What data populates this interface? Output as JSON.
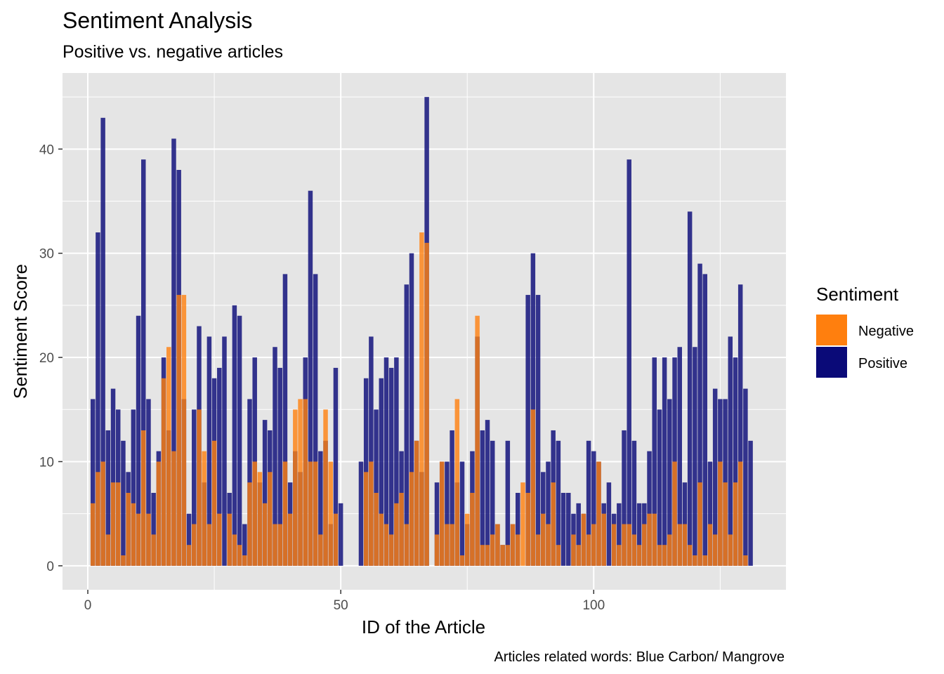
{
  "chart_data": {
    "type": "bar",
    "title": "Sentiment Analysis",
    "subtitle": "Positive vs. negative articles",
    "xlabel": "ID of the Article",
    "ylabel": "Sentiment Score",
    "caption": "Articles related words: Blue Carbon/ Mangrove",
    "xlim": [
      -5,
      138
    ],
    "ylim": [
      -2.3,
      47.3
    ],
    "x_ticks": [
      0,
      50,
      100
    ],
    "y_ticks": [
      0,
      10,
      20,
      30,
      40
    ],
    "grid": true,
    "legend": {
      "title": "Sentiment",
      "position": "right",
      "entries": [
        {
          "name": "Negative",
          "color": "#ff7f0e"
        },
        {
          "name": "Positive",
          "color": "#0a0a78"
        }
      ]
    },
    "colors": {
      "panel": "#e5e5e5",
      "grid": "#ffffff",
      "positive": "#0a0a78",
      "negative": "#ff7f0e"
    },
    "series": [
      {
        "name": "Positive",
        "x": [
          1,
          2,
          3,
          4,
          5,
          6,
          7,
          8,
          9,
          10,
          11,
          12,
          13,
          14,
          15,
          16,
          17,
          18,
          19,
          20,
          21,
          22,
          23,
          24,
          25,
          26,
          27,
          28,
          29,
          30,
          31,
          32,
          33,
          34,
          35,
          36,
          37,
          38,
          39,
          40,
          41,
          42,
          43,
          44,
          45,
          46,
          47,
          48,
          49,
          50,
          51,
          52,
          53,
          54,
          55,
          56,
          57,
          58,
          59,
          60,
          61,
          62,
          63,
          64,
          65,
          66,
          67,
          68,
          69,
          70,
          71,
          72,
          73,
          74,
          75,
          76,
          77,
          78,
          79,
          80,
          81,
          82,
          83,
          84,
          85,
          86,
          87,
          88,
          89,
          90,
          91,
          92,
          93,
          94,
          95,
          96,
          97,
          98,
          99,
          100,
          101,
          102,
          103,
          104,
          105,
          106,
          107,
          108,
          109,
          110,
          111,
          112,
          113,
          114,
          115,
          116,
          117,
          118,
          119,
          120,
          121,
          122,
          123,
          124,
          125,
          126,
          127,
          128,
          129,
          130,
          131
        ],
        "values": [
          16,
          32,
          43,
          13,
          17,
          15,
          12,
          9,
          15,
          24,
          39,
          16,
          7,
          11,
          20,
          13,
          41,
          38,
          16,
          5,
          15,
          23,
          8,
          22,
          18,
          19,
          22,
          7,
          25,
          24,
          4,
          16,
          20,
          8,
          14,
          13,
          21,
          19,
          28,
          8,
          11,
          9,
          20,
          36,
          28,
          11,
          12,
          4,
          19,
          6,
          0,
          0,
          0,
          10,
          18,
          22,
          15,
          18,
          20,
          19,
          20,
          11,
          27,
          30,
          12,
          9,
          45,
          0,
          8,
          10,
          10,
          13,
          8,
          10,
          4,
          11,
          22,
          13,
          14,
          12,
          4,
          2,
          12,
          4,
          7,
          0,
          26,
          30,
          26,
          9,
          10,
          13,
          12,
          7,
          7,
          5,
          6,
          5,
          12,
          11,
          10,
          6,
          8,
          5,
          6,
          13,
          39,
          12,
          6,
          6,
          11,
          20,
          15,
          20,
          16,
          20,
          21,
          8,
          34,
          21,
          29,
          28,
          10,
          17,
          16,
          16,
          22,
          20,
          27,
          17,
          12
        ]
      },
      {
        "name": "Negative",
        "x": [
          1,
          2,
          3,
          4,
          5,
          6,
          7,
          8,
          9,
          10,
          11,
          12,
          13,
          14,
          15,
          16,
          17,
          18,
          19,
          20,
          21,
          22,
          23,
          24,
          25,
          26,
          27,
          28,
          29,
          30,
          31,
          32,
          33,
          34,
          35,
          36,
          37,
          38,
          39,
          40,
          41,
          42,
          43,
          44,
          45,
          46,
          47,
          48,
          49,
          50,
          51,
          52,
          53,
          54,
          55,
          56,
          57,
          58,
          59,
          60,
          61,
          62,
          63,
          64,
          65,
          66,
          67,
          68,
          69,
          70,
          71,
          72,
          73,
          74,
          75,
          76,
          77,
          78,
          79,
          80,
          81,
          82,
          83,
          84,
          85,
          86,
          87,
          88,
          89,
          90,
          91,
          92,
          93,
          94,
          95,
          96,
          97,
          98,
          99,
          100,
          101,
          102,
          103,
          104,
          105,
          106,
          107,
          108,
          109,
          110,
          111,
          112,
          113,
          114,
          115,
          116,
          117,
          118,
          119,
          120,
          121,
          122,
          123,
          124,
          125,
          126,
          127,
          128,
          129,
          130,
          131
        ],
        "values": [
          6,
          9,
          10,
          3,
          8,
          8,
          1,
          7,
          6,
          5,
          13,
          5,
          3,
          10,
          18,
          21,
          11,
          26,
          26,
          2,
          4,
          15,
          11,
          4,
          12,
          5,
          0,
          5,
          3,
          2,
          1,
          8,
          10,
          9,
          6,
          9,
          4,
          4,
          10,
          5,
          15,
          16,
          16,
          10,
          10,
          3,
          15,
          10,
          5,
          0,
          0,
          0,
          0,
          0,
          9,
          10,
          7,
          5,
          4,
          3,
          6,
          7,
          4,
          9,
          12,
          32,
          31,
          0,
          3,
          10,
          4,
          4,
          16,
          1,
          5,
          7,
          24,
          2,
          2,
          3,
          4,
          2,
          2,
          4,
          3,
          8,
          7,
          15,
          3,
          5,
          4,
          8,
          2,
          0,
          0,
          3,
          2,
          5,
          3,
          4,
          10,
          5,
          0,
          4,
          2,
          4,
          4,
          3,
          2,
          4,
          5,
          5,
          2,
          2,
          3,
          10,
          4,
          4,
          2,
          1,
          8,
          1,
          4,
          3,
          10,
          8,
          3,
          8,
          10,
          1,
          0
        ]
      }
    ]
  }
}
